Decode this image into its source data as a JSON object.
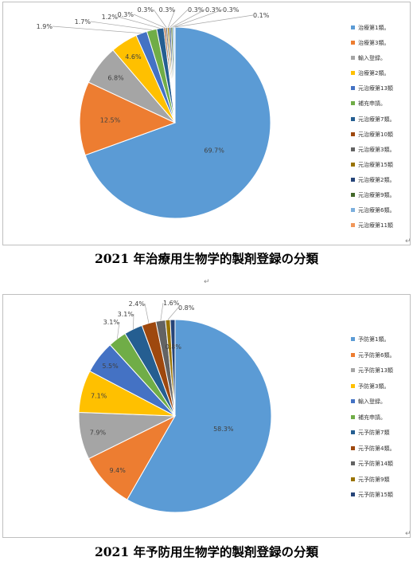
{
  "charts": [
    {
      "type": "pie",
      "title": "2021 年治療用生物学的製剤登録の分類",
      "slices": [
        {
          "label": "治療第1類。",
          "value": 69.7,
          "display": "69.7%",
          "color": "#5b9bd5"
        },
        {
          "label": "治療第3類。",
          "value": 12.5,
          "display": "12.5%",
          "color": "#ed7d31"
        },
        {
          "label": "輸入登録。",
          "value": 6.8,
          "display": "6.8%",
          "color": "#a5a5a5"
        },
        {
          "label": "治療第2類。",
          "value": 4.6,
          "display": "4.6%",
          "color": "#ffc000"
        },
        {
          "label": "元治療第13類",
          "value": 1.9,
          "display": "1.9%",
          "color": "#4472c4"
        },
        {
          "label": "補充申請。",
          "value": 1.7,
          "display": "1.7%",
          "color": "#70ad47"
        },
        {
          "label": "元治療第7類。",
          "value": 1.2,
          "display": "1.2%",
          "color": "#255e91"
        },
        {
          "label": "元治療第10類",
          "value": 0.3,
          "display": "0.3%",
          "color": "#9e480e"
        },
        {
          "label": "元治療第3類。",
          "value": 0.3,
          "display": "0.3%",
          "color": "#636363"
        },
        {
          "label": "元治療第15類",
          "value": 0.3,
          "display": "0.3%",
          "color": "#997300"
        },
        {
          "label": "元治療第2類。",
          "value": 0.3,
          "display": "0.3%",
          "color": "#264478"
        },
        {
          "label": "元治療第9類。",
          "value": 0.3,
          "display": "0.3%",
          "color": "#43682b"
        },
        {
          "label": "元治療第6類。",
          "value": 0.3,
          "display": "0.3%",
          "color": "#7cafdd"
        },
        {
          "label": "元治療第11類",
          "value": 0.1,
          "display": "0.1%",
          "color": "#f1975a"
        }
      ]
    },
    {
      "type": "pie",
      "title": "2021 年予防用生物学的製剤登録の分類",
      "slices": [
        {
          "label": "予防第1類。",
          "value": 58.3,
          "display": "58.3%",
          "color": "#5b9bd5"
        },
        {
          "label": "元予防第6類。",
          "value": 9.4,
          "display": "9.4%",
          "color": "#ed7d31"
        },
        {
          "label": "元予防第13類",
          "value": 7.9,
          "display": "7.9%",
          "color": "#a5a5a5"
        },
        {
          "label": "予防第3類。",
          "value": 7.1,
          "display": "7.1%",
          "color": "#ffc000"
        },
        {
          "label": "輸入登録。",
          "value": 5.5,
          "display": "5.5%",
          "color": "#4472c4"
        },
        {
          "label": "補充申請。",
          "value": 3.1,
          "display": "3.1%",
          "color": "#70ad47"
        },
        {
          "label": "元予防第7類",
          "value": 3.1,
          "display": "3.1%",
          "color": "#255e91"
        },
        {
          "label": "元予防第4類。",
          "value": 2.4,
          "display": "2.4%",
          "color": "#9e480e"
        },
        {
          "label": "元予防第14類",
          "value": 1.6,
          "display": "1.6%",
          "color": "#636363"
        },
        {
          "label": "元予防第9類",
          "value": 0.8,
          "display": "0.8%",
          "color": "#997300"
        },
        {
          "label": "元予防第15類",
          "value": 0.8,
          "display": "0.8%",
          "color": "#264478"
        }
      ]
    }
  ],
  "caption1": {
    "text": "2021 年治療用生物学的製剤登録の分類"
  },
  "caption2": {
    "prefix": "2021 年予防用生物学的製剤登録の分類"
  }
}
